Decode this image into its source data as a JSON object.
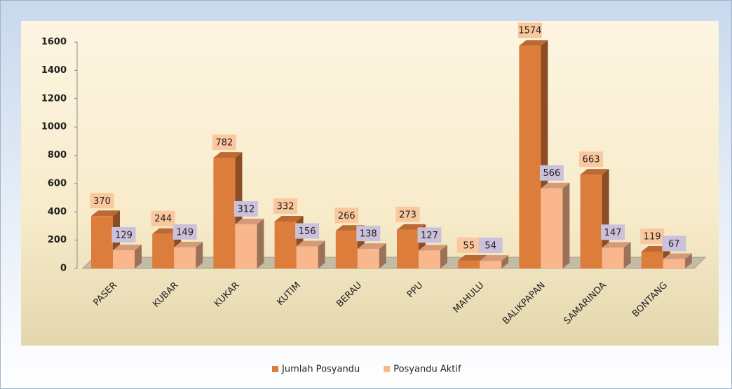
{
  "chart_data": {
    "type": "bar3d",
    "categories": [
      "PASER",
      "KUBAR",
      "KUKAR",
      "KUTIM",
      "BERAU",
      "PPU",
      "MAHULU",
      "BALIKPAPAN",
      "SAMARINDA",
      "BONTANG"
    ],
    "series": [
      {
        "name": "Jumlah Posyandu",
        "color": "#dd7d3b",
        "label_color": "#fbc79d",
        "values": [
          370,
          244,
          782,
          332,
          266,
          273,
          55,
          1574,
          663,
          119
        ]
      },
      {
        "name": "Posyandu Aktif",
        "color": "#fab68c",
        "label_color": "#ccc1da",
        "values": [
          129,
          149,
          312,
          156,
          138,
          127,
          54,
          566,
          147,
          67
        ]
      }
    ],
    "ylim": [
      0,
      1600
    ],
    "yticks": [
      0,
      200,
      400,
      600,
      800,
      1000,
      1200,
      1400,
      1600
    ],
    "legend": "bottom"
  }
}
